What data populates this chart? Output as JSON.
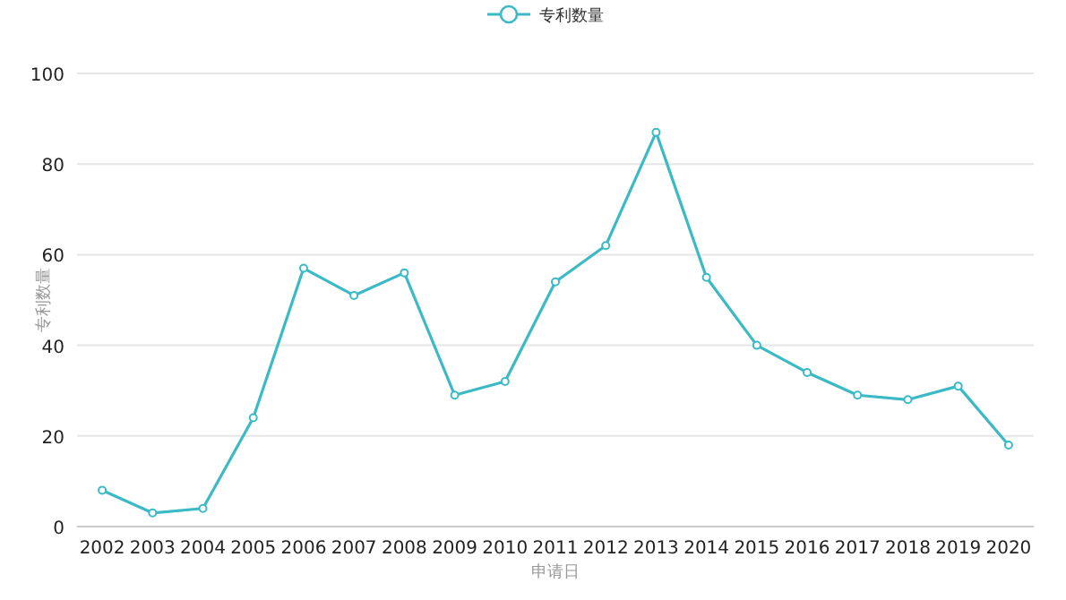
{
  "chart_data": {
    "type": "line",
    "xlabel": "申请日",
    "ylabel": "专利数量",
    "categories": [
      "2002",
      "2003",
      "2004",
      "2005",
      "2006",
      "2007",
      "2008",
      "2009",
      "2010",
      "2011",
      "2012",
      "2013",
      "2014",
      "2015",
      "2016",
      "2017",
      "2018",
      "2019",
      "2020"
    ],
    "series": [
      {
        "name": "专利数量",
        "color": "#3bbac6",
        "values": [
          8,
          3,
          4,
          24,
          57,
          51,
          56,
          29,
          32,
          54,
          62,
          87,
          55,
          40,
          34,
          29,
          28,
          31,
          18
        ]
      }
    ],
    "ylim": [
      0,
      100
    ],
    "yticks": [
      0,
      20,
      40,
      60,
      80,
      100
    ],
    "grid": "y",
    "legend": "top",
    "marker": "circle",
    "line_style": "solid"
  }
}
